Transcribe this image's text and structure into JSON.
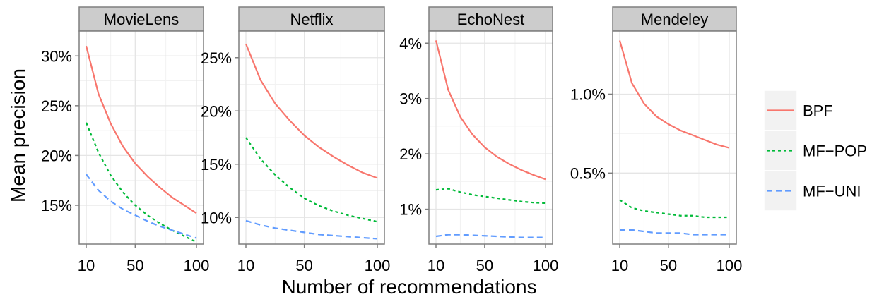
{
  "chart_data": {
    "type": "line",
    "xlabel": "Number of recommendations",
    "ylabel": "Mean precision",
    "x": [
      10,
      20,
      30,
      40,
      50,
      60,
      70,
      80,
      90,
      100
    ],
    "x_ticks": [
      10,
      50,
      100
    ],
    "grid": true,
    "legend_position": "right",
    "series_styles": [
      {
        "name": "BPF",
        "color": "#F8766D",
        "dash": "solid"
      },
      {
        "name": "MF−POP",
        "color": "#00BA38",
        "dash": "dotted"
      },
      {
        "name": "MF−UNI",
        "color": "#619CFF",
        "dash": "dashed"
      }
    ],
    "panels": [
      {
        "title": "MovieLens",
        "ylim": [
          0.111,
          0.325
        ],
        "y_ticks": [
          0.15,
          0.2,
          0.25,
          0.3
        ],
        "y_tick_labels": [
          "15%",
          "20%",
          "25%",
          "30%"
        ],
        "series": [
          {
            "name": "BPF",
            "values": [
              0.31,
              0.262,
              0.232,
              0.209,
              0.192,
              0.179,
              0.168,
              0.158,
              0.15,
              0.142
            ]
          },
          {
            "name": "MF−POP",
            "values": [
              0.233,
              0.203,
              0.18,
              0.163,
              0.15,
              0.14,
              0.132,
              0.125,
              0.119,
              0.113
            ]
          },
          {
            "name": "MF−UNI",
            "values": [
              0.181,
              0.165,
              0.154,
              0.146,
              0.14,
              0.134,
              0.129,
              0.125,
              0.121,
              0.117
            ]
          }
        ]
      },
      {
        "title": "Netflix",
        "ylim": [
          0.075,
          0.275
        ],
        "y_ticks": [
          0.1,
          0.15,
          0.2,
          0.25
        ],
        "y_tick_labels": [
          "10%",
          "15%",
          "20%",
          "25%"
        ],
        "series": [
          {
            "name": "BPF",
            "values": [
              0.263,
              0.229,
              0.207,
              0.191,
              0.177,
              0.166,
              0.157,
              0.149,
              0.142,
              0.137
            ]
          },
          {
            "name": "MF−POP",
            "values": [
              0.175,
              0.155,
              0.14,
              0.128,
              0.118,
              0.111,
              0.106,
              0.102,
              0.099,
              0.096
            ]
          },
          {
            "name": "MF−UNI",
            "values": [
              0.097,
              0.093,
              0.09,
              0.088,
              0.086,
              0.084,
              0.083,
              0.082,
              0.081,
              0.08
            ]
          }
        ]
      },
      {
        "title": "EchoNest",
        "ylim": [
          0.0037,
          0.0422
        ],
        "y_ticks": [
          0.01,
          0.02,
          0.03,
          0.04
        ],
        "y_tick_labels": [
          "1%",
          "2%",
          "3%",
          "4%"
        ],
        "series": [
          {
            "name": "BPF",
            "values": [
              0.0405,
              0.0316,
              0.0267,
              0.0235,
              0.0212,
              0.0195,
              0.0182,
              0.0171,
              0.0162,
              0.0154
            ]
          },
          {
            "name": "MF−POP",
            "values": [
              0.0135,
              0.0137,
              0.0131,
              0.0126,
              0.0123,
              0.012,
              0.0117,
              0.0114,
              0.0112,
              0.0111
            ]
          },
          {
            "name": "MF−UNI",
            "values": [
              0.0051,
              0.0054,
              0.0054,
              0.0053,
              0.0052,
              0.0051,
              0.005,
              0.0049,
              0.0049,
              0.0049
            ]
          }
        ]
      },
      {
        "title": "Mendeley",
        "ylim": [
          0.0005,
          0.014
        ],
        "y_ticks": [
          0.005,
          0.01
        ],
        "y_tick_labels": [
          "0.5%",
          "1.0%"
        ],
        "series": [
          {
            "name": "BPF",
            "values": [
              0.0134,
              0.0107,
              0.0094,
              0.0086,
              0.0081,
              0.0077,
              0.0074,
              0.0071,
              0.0068,
              0.0066
            ]
          },
          {
            "name": "MF−POP",
            "values": [
              0.0033,
              0.0028,
              0.0026,
              0.0025,
              0.0024,
              0.0023,
              0.0023,
              0.0022,
              0.0022,
              0.0022
            ]
          },
          {
            "name": "MF−UNI",
            "values": [
              0.0014,
              0.0014,
              0.0013,
              0.0012,
              0.0012,
              0.0012,
              0.0011,
              0.0011,
              0.0011,
              0.0011
            ]
          }
        ]
      }
    ]
  }
}
